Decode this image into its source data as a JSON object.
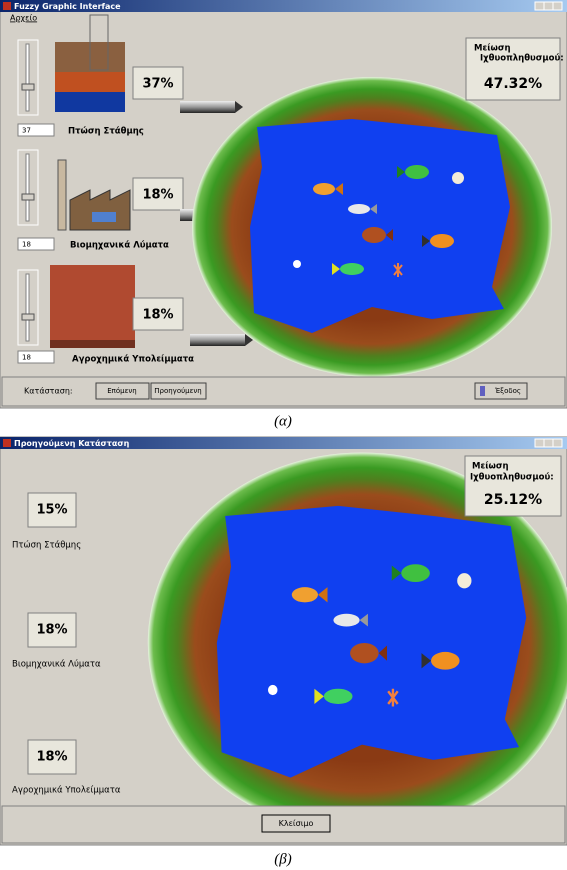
{
  "window_a": {
    "title": "Fuzzy Graphic Interface",
    "menu": "Αρχείο",
    "gauges": [
      {
        "percent": "37%",
        "spinner": "37",
        "label": "Πτώση Στάθμης"
      },
      {
        "percent": "18%",
        "spinner": "18",
        "label": "Βιομηχανικά Λύματα"
      },
      {
        "percent": "18%",
        "spinner": "18",
        "label": "Αγροχημικά Υπολείμματα"
      }
    ],
    "reduction": {
      "line1": "Μείωση",
      "line2": "Ιχθυοπληθυσμού:",
      "value": "47.32%"
    },
    "status_label": "Κατάσταση:",
    "buttons": [
      "Επόμενη",
      "Προηγούμενη",
      "Έξοδος"
    ]
  },
  "caption_a": "(α)",
  "window_b": {
    "title": "Προηγούμενη Κατάσταση",
    "gauges": [
      {
        "percent": "15%",
        "label": "Πτώση Στάθμης"
      },
      {
        "percent": "18%",
        "label": "Βιομηχανικά Λύματα"
      },
      {
        "percent": "18%",
        "label": "Αγροχημικά Υπολείμματα"
      }
    ],
    "reduction": {
      "line1": "Μείωση",
      "line2": "Ιχθυοπληθυσμού:",
      "value": "25.12%"
    },
    "button": "Κλείσιμο"
  },
  "caption_b": "(β)"
}
